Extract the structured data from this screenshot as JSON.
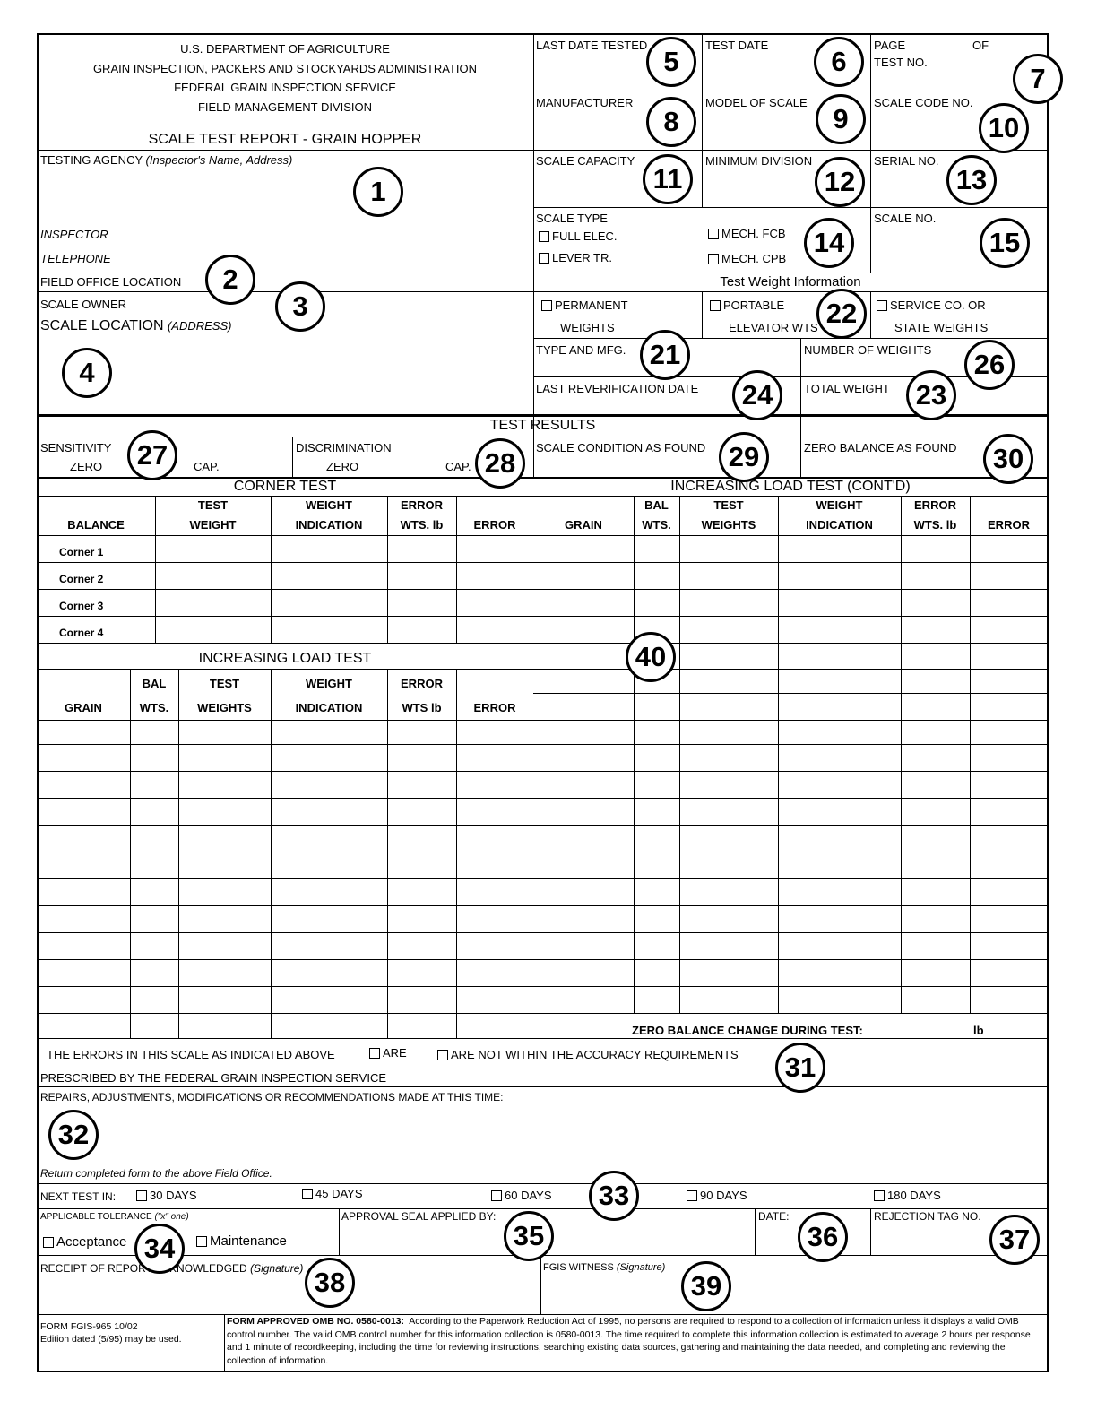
{
  "header": {
    "agency": [
      "U.S. DEPARTMENT OF AGRICULTURE",
      "GRAIN INSPECTION, PACKERS AND STOCKYARDS ADMINISTRATION",
      "FEDERAL GRAIN INSPECTION SERVICE",
      "FIELD MANAGEMENT DIVISION"
    ],
    "title": "SCALE TEST REPORT -  GRAIN HOPPER"
  },
  "fields": {
    "last_date_tested": "LAST DATE TESTED",
    "test_date": "TEST DATE",
    "page": "PAGE",
    "of": "OF",
    "test_no": "TEST NO.",
    "manufacturer": "MANUFACTURER",
    "model": "MODEL OF SCALE",
    "scale_code": "SCALE CODE NO.",
    "capacity": "SCALE CAPACITY",
    "min_division": "MINIMUM DIVISION",
    "serial": "SERIAL NO.",
    "scale_type": "SCALE TYPE",
    "full_elec": "FULL ELEC.",
    "lever_tr": "LEVER TR.",
    "mech_fcb": "MECH. FCB",
    "mech_cpb": "MECH. CPB",
    "scale_no": "SCALE NO.",
    "testing_agency": "TESTING AGENCY",
    "testing_agency_note": "(Inspector's Name, Address)",
    "inspector": "INSPECTOR",
    "telephone": "TELEPHONE",
    "field_office": "FIELD OFFICE LOCATION",
    "scale_owner": "SCALE OWNER",
    "scale_location": "SCALE LOCATION",
    "scale_location_note": "(ADDRESS)"
  },
  "weights": {
    "header": "Test Weight Information",
    "permanent": "PERMANENT",
    "permanent2": "WEIGHTS",
    "portable": "PORTABLE",
    "portable2": "ELEVATOR WTS",
    "service": "SERVICE CO. OR",
    "service2": "STATE WEIGHTS",
    "type_mfg": "TYPE AND MFG.",
    "number": "NUMBER OF WEIGHTS",
    "last_reverification": "LAST REVERIFICATION DATE",
    "total": "TOTAL WEIGHT"
  },
  "results": {
    "header": "TEST RESULTS",
    "sensitivity": "SENSITIVITY",
    "zero": "ZERO",
    "cap": "CAP.",
    "discrimination": "DISCRIMINATION",
    "condition": "SCALE CONDITION AS FOUND",
    "zero_balance": "ZERO BALANCE AS FOUND"
  },
  "corner_test": {
    "title": "CORNER TEST",
    "headers": [
      [
        "",
        "BALANCE"
      ],
      [
        "TEST",
        "WEIGHT"
      ],
      [
        "WEIGHT",
        "INDICATION"
      ],
      [
        "ERROR",
        "WTS. lb"
      ],
      [
        "",
        "ERROR"
      ]
    ],
    "rows": [
      "Corner 1",
      "Corner 2",
      "Corner 3",
      "Corner 4"
    ]
  },
  "increasing": {
    "title": "INCREASING LOAD TEST",
    "headers": [
      [
        "",
        "GRAIN"
      ],
      [
        "BAL",
        "WTS."
      ],
      [
        "TEST",
        "WEIGHTS"
      ],
      [
        "WEIGHT",
        "INDICATION"
      ],
      [
        "ERROR",
        "WTS lb"
      ],
      [
        "",
        "ERROR"
      ]
    ]
  },
  "increasing_cont": {
    "title": "INCREASING LOAD TEST (CONT'D)",
    "headers": [
      [
        "",
        "GRAIN"
      ],
      [
        "BAL",
        "WTS."
      ],
      [
        "TEST",
        "WEIGHTS"
      ],
      [
        "WEIGHT",
        "INDICATION"
      ],
      [
        "ERROR",
        "WTS. lb"
      ],
      [
        "",
        "ERROR"
      ]
    ],
    "zero_change": "ZERO BALANCE CHANGE DURING TEST:",
    "unit": "lb"
  },
  "accuracy": {
    "text1": "THE ERRORS IN THIS SCALE AS INDICATED ABOVE",
    "are": "ARE",
    "are_not": "ARE NOT WITHIN THE ACCURACY REQUIREMENTS",
    "text2": "PRESCRIBED BY THE FEDERAL GRAIN INSPECTION SERVICE"
  },
  "repairs": {
    "label": "REPAIRS, ADJUSTMENTS, MODIFICATIONS OR RECOMMENDATIONS MADE AT THIS TIME:",
    "return_note": "Return completed form to the above Field Office."
  },
  "next_test": {
    "label": "NEXT TEST IN:",
    "options": [
      "30  DAYS",
      "45  DAYS",
      "60  DAYS",
      "90  DAYS",
      "180  DAYS"
    ]
  },
  "tolerance": {
    "label": "APPLICABLE TOLERANCE",
    "note": "(\"x\" one)",
    "acceptance": "Acceptance",
    "maintenance": "Maintenance"
  },
  "seal": "APPROVAL SEAL APPLIED BY:",
  "date": "DATE:",
  "rejection": "REJECTION TAG NO.",
  "receipt": {
    "label": "RECEIPT OF REPORT ACKNOWLEDGED",
    "note": "(Signature)"
  },
  "witness": {
    "label": "FGIS WITNESS",
    "note": "(Signature)"
  },
  "footer": {
    "form": "FORM FGIS-965 10/02",
    "edition": "Edition dated (5/95) may be used.",
    "omb_bold": "FORM APPROVED OMB NO. 0580-0013:",
    "omb_text": "According to the Paperwork Reduction Act of 1995, no persons are required to respond to a collection of information unless it displays a valid OMB control number.  The valid OMB control number for this information collection is 0580-0013.  The time required to complete this information collection is estimated to average 2 hours per response and 1 minute of recordkeeping, including the time for reviewing instructions, searching existing data sources, gathering and maintaining the data needed, and completing and reviewing the collection of information."
  },
  "callouts": [
    "1",
    "2",
    "3",
    "4",
    "5",
    "6",
    "7",
    "8",
    "9",
    "10",
    "11",
    "12",
    "13",
    "14",
    "15",
    "21",
    "22",
    "23",
    "24",
    "26",
    "27",
    "28",
    "29",
    "30",
    "31",
    "32",
    "33",
    "34",
    "35",
    "36",
    "37",
    "38",
    "39",
    "40"
  ]
}
